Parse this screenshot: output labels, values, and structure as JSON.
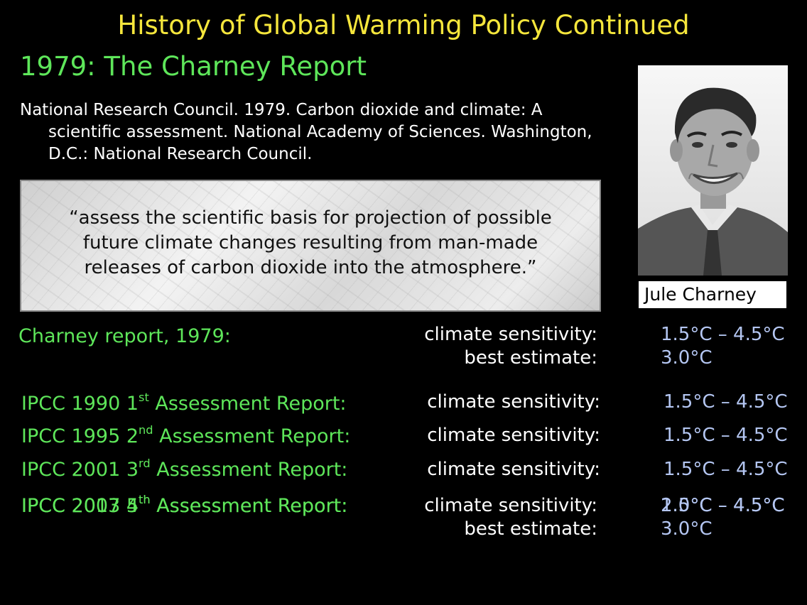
{
  "slide": {
    "title": "History of Global Warming Policy Continued",
    "subtitle": "1979: The Charney Report",
    "citation": {
      "line1": "National Research Council. 1979. Carbon dioxide and climate: A",
      "line2": "scientific assessment. National Academy of Sciences. Washington,",
      "line3": "D.C.: National Research Council."
    },
    "quote": {
      "line1": "“assess the scientific basis for projection of possible",
      "line2": "future climate changes resulting from man-made",
      "line3": "releases of carbon dioxide into the atmosphere.”"
    },
    "photo_caption": "Jule Charney",
    "colors": {
      "title": "#f5e63c",
      "green": "#5ee65a",
      "value_blue": "#b4c6f2",
      "background": "#000000"
    }
  },
  "rows": {
    "charney": {
      "label": "Charney report, 1979:",
      "sensitivity_label": "climate sensitivity:",
      "sensitivity_value": "1.5°C – 4.5°C",
      "best_label": "best estimate:",
      "best_value": "3.0°C"
    },
    "ipcc1990": {
      "label_pre": "IPCC 1990 1",
      "label_sup": "st",
      "label_post": " Assessment Report:",
      "sensitivity_label": "climate sensitivity:",
      "sensitivity_value": "1.5°C – 4.5°C"
    },
    "ipcc1995": {
      "label_pre": "IPCC 1995 2",
      "label_sup": "nd",
      "label_post": " Assessment Report:",
      "sensitivity_label": "climate sensitivity:",
      "sensitivity_value": "1.5°C – 4.5°C"
    },
    "ipcc2001": {
      "label_pre": "IPCC 2001 3",
      "label_sup": "rd",
      "label_post": " Assessment Report:",
      "sensitivity_label": "climate sensitivity:",
      "sensitivity_value": "1.5°C – 4.5°C"
    },
    "ipcc2007": {
      "label_pre": "IPCC 2007 4",
      "label_sup": "th",
      "label_post": " Assessment Report:",
      "sensitivity_label": "climate sensitivity:",
      "sensitivity_value": "2.0°C – 4.5°C",
      "best_label": "best estimate:",
      "best_value": "3.0°C"
    },
    "ipcc2013": {
      "label_pre": "IPCC 2013 5",
      "label_sup": "th",
      "label_post": " Assessment Report:",
      "sensitivity_value": "1.5°C – 4.5°C"
    }
  }
}
